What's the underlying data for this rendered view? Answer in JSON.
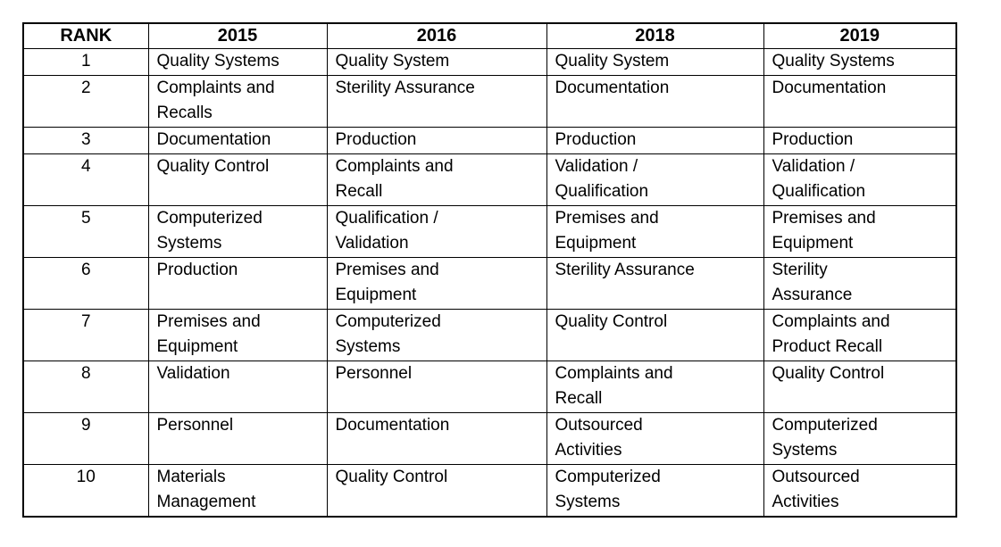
{
  "table": {
    "columns": [
      "RANK",
      "2015",
      "2016",
      "2018",
      "2019"
    ],
    "rows": [
      {
        "rank": "1",
        "lines": 1,
        "cells": [
          "Quality Systems",
          "Quality System",
          "Quality System",
          "Quality Systems"
        ]
      },
      {
        "rank": "2",
        "lines": 2,
        "cells": [
          "Complaints and\nRecalls",
          "Sterility Assurance",
          "Documentation",
          "Documentation"
        ]
      },
      {
        "rank": "3",
        "lines": 1,
        "cells": [
          "Documentation",
          "Production",
          "Production",
          "Production"
        ]
      },
      {
        "rank": "4",
        "lines": 2,
        "cells": [
          "Quality Control",
          "Complaints and\nRecall",
          "Validation /\nQualification",
          "Validation /\nQualification"
        ]
      },
      {
        "rank": "5",
        "lines": 2,
        "cells": [
          "Computerized\nSystems",
          "Qualification /\nValidation",
          "Premises and\nEquipment",
          "Premises and\nEquipment"
        ]
      },
      {
        "rank": "6",
        "lines": 2,
        "cells": [
          "Production",
          "Premises and\nEquipment",
          "Sterility Assurance",
          "Sterility\nAssurance"
        ]
      },
      {
        "rank": "7",
        "lines": 2,
        "cells": [
          "Premises and\nEquipment",
          "Computerized\nSystems",
          "Quality Control",
          "Complaints and\nProduct Recall"
        ]
      },
      {
        "rank": "8",
        "lines": 2,
        "cells": [
          "Validation",
          "Personnel",
          "Complaints and\nRecall",
          "Quality Control"
        ]
      },
      {
        "rank": "9",
        "lines": 2,
        "cells": [
          "Personnel",
          "Documentation",
          "Outsourced\nActivities",
          "Computerized\nSystems"
        ]
      },
      {
        "rank": "10",
        "lines": 2,
        "cells": [
          "Materials\nManagement",
          "Quality Control",
          "Computerized\nSystems",
          "Outsourced\nActivities"
        ]
      }
    ]
  }
}
